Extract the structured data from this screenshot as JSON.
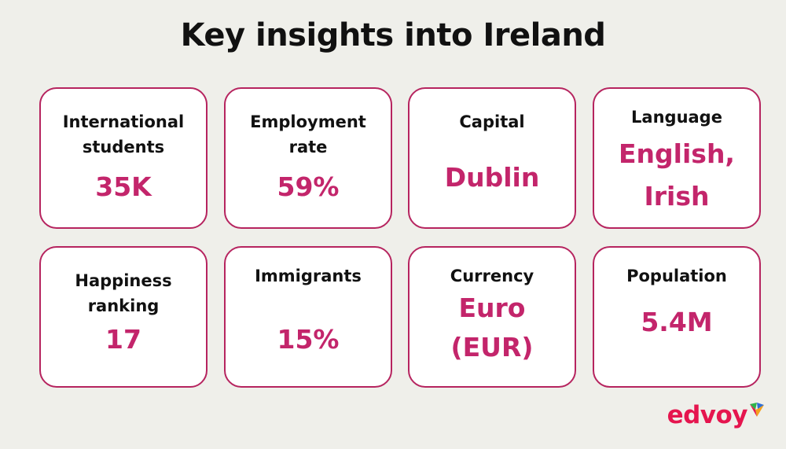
{
  "title": "Key insights into Ireland",
  "cards": [
    {
      "label": "International students",
      "value": "35K"
    },
    {
      "label": "Employment rate",
      "value": "59%"
    },
    {
      "label": "Capital",
      "value": "Dublin"
    },
    {
      "label": "Language",
      "value": "English, Irish"
    },
    {
      "label": "Happiness ranking",
      "value": "17"
    },
    {
      "label": "Immigrants",
      "value": "15%"
    },
    {
      "label": "Currency",
      "value": "Euro (EUR)"
    },
    {
      "label": "Population",
      "value": "5.4M"
    }
  ],
  "logo": {
    "text": "edvoy",
    "colors": {
      "text": "#e5154e",
      "mark_green": "#2fb24c",
      "mark_blue": "#2f6fd6",
      "mark_orange": "#f4a21d",
      "mark_red": "#e5154e"
    }
  },
  "colors": {
    "background": "#efefea",
    "card_border": "#b6245f",
    "value": "#c3256b",
    "label": "#111111"
  }
}
